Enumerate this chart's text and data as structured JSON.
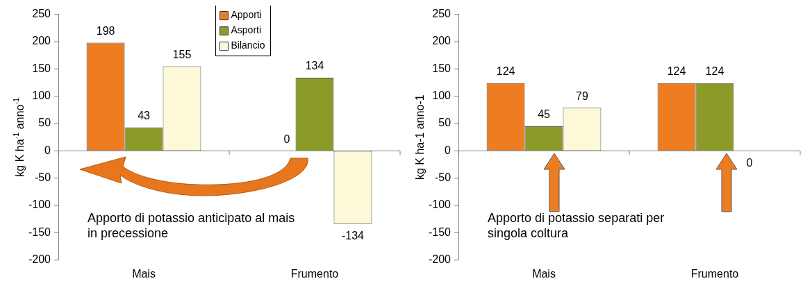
{
  "chart_data": [
    {
      "type": "bar",
      "categories": [
        "Mais",
        "Frumento"
      ],
      "series": [
        {
          "name": "Apporti",
          "color": "#ee7d22",
          "values": [
            198,
            0
          ],
          "value_labels": [
            "198",
            null
          ]
        },
        {
          "name": "Asporti",
          "color": "#8c9a27",
          "values": [
            43,
            134
          ],
          "value_labels": [
            "43",
            "134"
          ]
        },
        {
          "name": "Bilancio",
          "color": "#fcf8d8",
          "values": [
            155,
            -134
          ],
          "value_labels": [
            "155",
            "-134"
          ]
        }
      ],
      "ylim": [
        -200,
        250
      ],
      "yticks": [
        -200,
        -150,
        -100,
        -50,
        0,
        50,
        100,
        150,
        200,
        250
      ],
      "ylabel": "kg K ha$^{-1}$ anno$^{-1}$",
      "legend": "top",
      "annotations": [
        "Apporto di potassio anticipato al mais in precessione",
        {
          "text": "0",
          "x": "Frumento",
          "y": 0
        }
      ]
    },
    {
      "type": "bar",
      "categories": [
        "Mais",
        "Frumento"
      ],
      "series": [
        {
          "color": "#ee7d22",
          "values": [
            124,
            124
          ],
          "value_labels": [
            "124",
            "124"
          ]
        },
        {
          "color": "#8c9a27",
          "values": [
            45,
            124
          ],
          "value_labels": [
            "45",
            "124"
          ]
        },
        {
          "color": "#fcf8d8",
          "values": [
            79,
            0
          ],
          "value_labels": [
            "79",
            null
          ]
        }
      ],
      "ylim": [
        -200,
        250
      ],
      "yticks": [
        -200,
        -150,
        -100,
        -50,
        0,
        50,
        100,
        150,
        200,
        250
      ],
      "ylabel": "kg K ha-1 anno-1",
      "legend": false,
      "annotations": [
        "Apporto di potassio separati per singola coltura",
        {
          "text": "0",
          "x": "Frumento",
          "y": 0
        }
      ]
    }
  ]
}
